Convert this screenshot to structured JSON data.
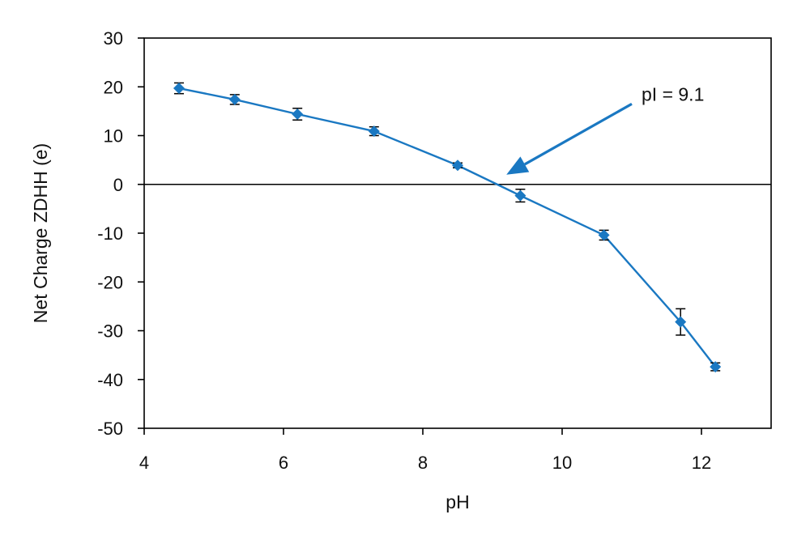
{
  "chart_data": {
    "type": "line",
    "title": "",
    "xlabel": "pH",
    "ylabel": "Net Charge ZDHH (e)",
    "xlim": [
      4,
      13
    ],
    "ylim": [
      -50,
      30
    ],
    "xticks": [
      4,
      6,
      8,
      10,
      12
    ],
    "yticks": [
      30,
      20,
      10,
      0,
      -10,
      -20,
      -30,
      -40,
      -50
    ],
    "x_tick_labels": [
      "4",
      "6",
      "8",
      "10",
      "12"
    ],
    "y_tick_labels": [
      "30",
      "20",
      "10",
      "0",
      "-10",
      "-20",
      "-30",
      "-40",
      "-50"
    ],
    "grid": false,
    "zero_line": true,
    "color": "#1a78c2",
    "marker": "diamond",
    "series": [
      {
        "x": [
          4.5,
          5.3,
          6.2,
          7.3,
          8.5,
          9.4,
          10.6,
          11.7,
          12.2
        ],
        "y": [
          19.7,
          17.4,
          14.4,
          10.9,
          3.9,
          -2.3,
          -10.4,
          -28.2,
          -37.4
        ],
        "error": [
          1.1,
          1.0,
          1.2,
          0.9,
          0.5,
          1.3,
          1.0,
          2.7,
          0.8
        ]
      }
    ],
    "annotation": {
      "text": "pI = 9.1",
      "arrow_from": [
        11.0,
        16.5
      ],
      "arrow_to": [
        9.2,
        2.0
      ]
    }
  }
}
